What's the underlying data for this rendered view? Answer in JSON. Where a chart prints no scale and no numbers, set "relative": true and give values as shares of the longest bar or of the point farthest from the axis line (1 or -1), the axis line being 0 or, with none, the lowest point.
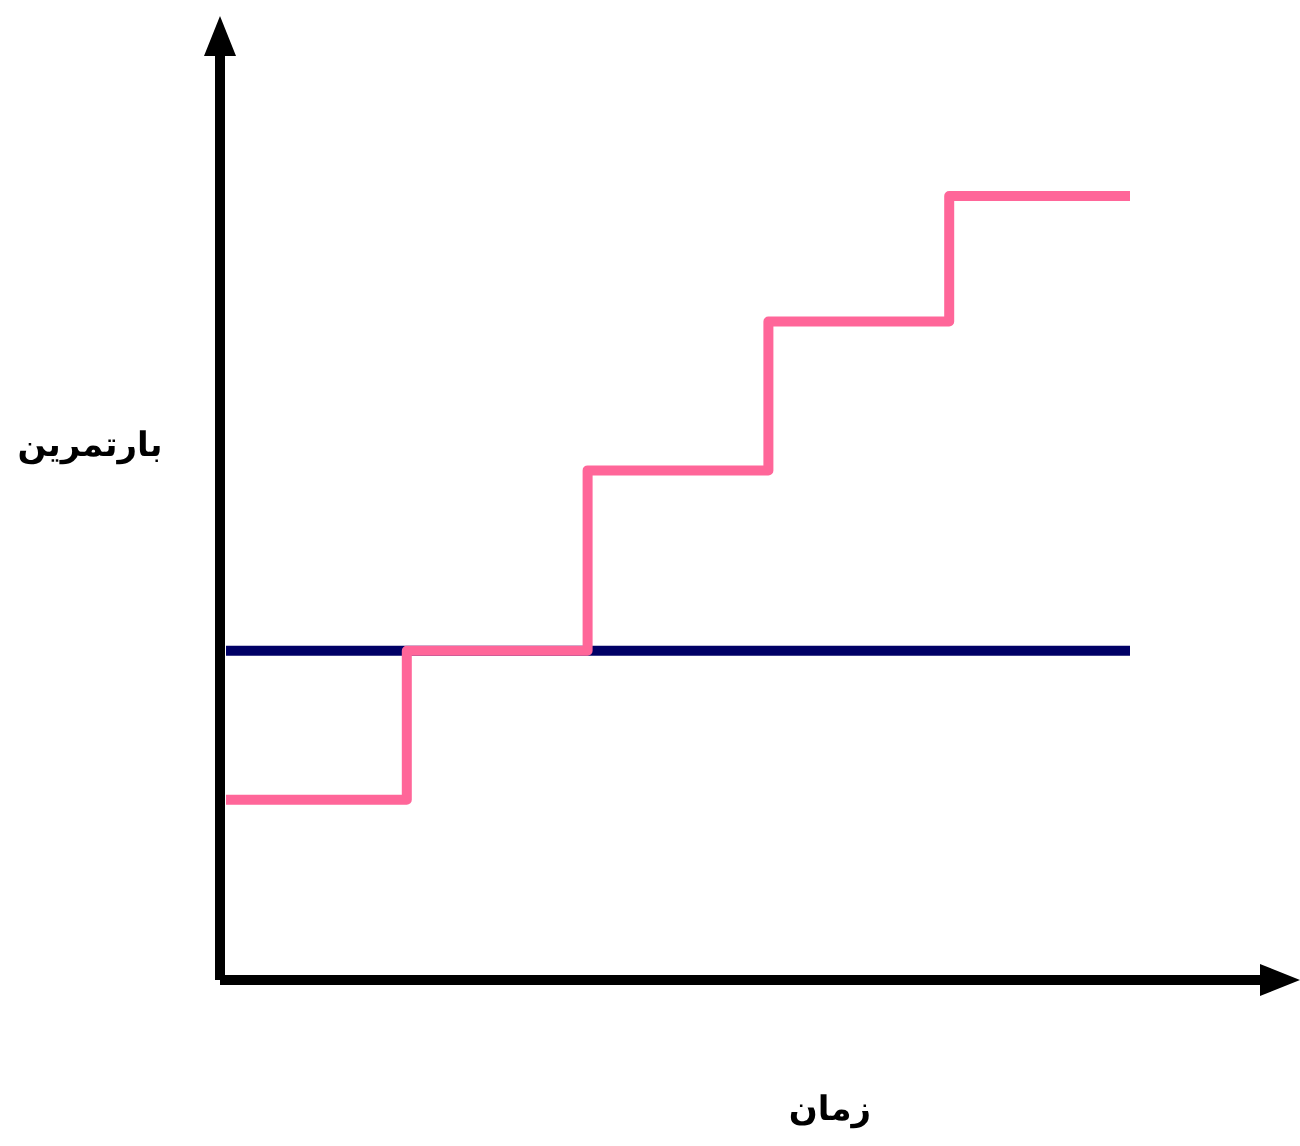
{
  "chart_data": {
    "type": "step",
    "relative": true,
    "xlabel": "زمان",
    "ylabel": "بارتمرین",
    "categories": [
      null,
      null,
      null,
      null,
      null,
      null
    ],
    "series": [
      {
        "color": "#000066",
        "values": [
          0.42,
          0.42,
          0.42,
          0.42,
          0.42,
          0.42
        ]
      },
      {
        "color": "#ff6699",
        "values": [
          0.23,
          0.42,
          0.65,
          0.84,
          1,
          1
        ]
      }
    ]
  }
}
